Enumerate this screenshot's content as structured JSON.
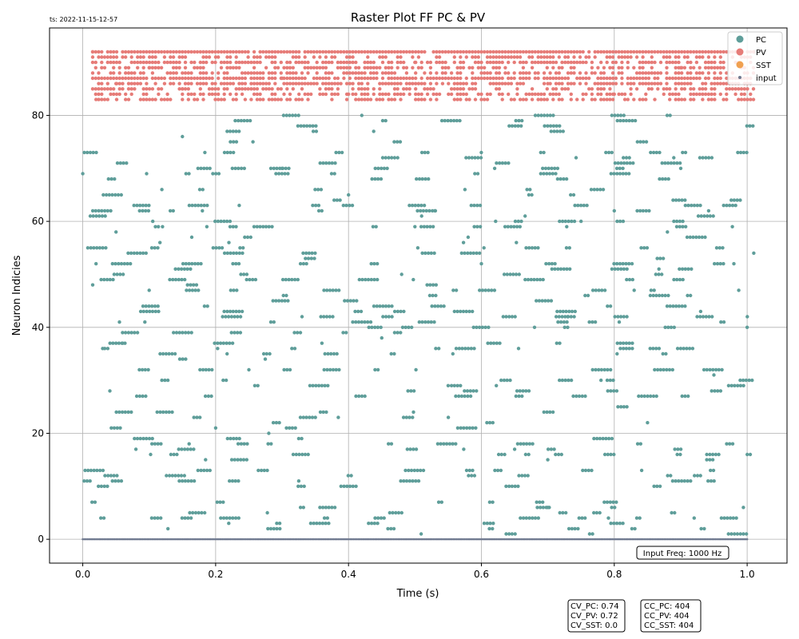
{
  "timestamp": "ts: 2022-11-15-12-57",
  "chart_data": {
    "type": "scatter",
    "title": "Raster Plot FF PC & PV",
    "xlabel": "Time (s)",
    "ylabel": "Neuron Indicies",
    "xlim": [
      -0.05,
      1.06
    ],
    "ylim": [
      -4.5,
      96.5
    ],
    "xticks": [
      0.0,
      0.2,
      0.4,
      0.6,
      0.8,
      1.0
    ],
    "xtick_labels": [
      "0.0",
      "0.2",
      "0.4",
      "0.6",
      "0.8",
      "1.0"
    ],
    "yticks": [
      0,
      20,
      40,
      60,
      80
    ],
    "ytick_labels": [
      "0",
      "20",
      "40",
      "60",
      "80"
    ],
    "grid": true,
    "legend_position": "top-right",
    "series": [
      {
        "name": "PC",
        "color": "#5f9e9a",
        "neuron_range": [
          1,
          80
        ],
        "duration": [
          0.0,
          1.01
        ],
        "sample_spikes": [
          {
            "t": 0.0,
            "y": 69
          },
          {
            "t": 0.015,
            "y": 48
          },
          {
            "t": 0.02,
            "y": 52
          },
          {
            "t": 0.03,
            "y": 36
          },
          {
            "t": 0.05,
            "y": 58
          },
          {
            "t": 0.06,
            "y": 37
          },
          {
            "t": 0.08,
            "y": 17
          },
          {
            "t": 0.1,
            "y": 47
          },
          {
            "t": 0.12,
            "y": 59
          },
          {
            "t": 0.15,
            "y": 76
          },
          {
            "t": 0.18,
            "y": 62
          },
          {
            "t": 0.2,
            "y": 21
          },
          {
            "t": 0.22,
            "y": 56
          },
          {
            "t": 0.25,
            "y": 32
          },
          {
            "t": 0.28,
            "y": 20
          },
          {
            "t": 0.3,
            "y": 70
          },
          {
            "t": 0.33,
            "y": 42
          },
          {
            "t": 0.36,
            "y": 37
          },
          {
            "t": 0.4,
            "y": 65
          },
          {
            "t": 0.42,
            "y": 80
          },
          {
            "t": 0.45,
            "y": 38
          },
          {
            "t": 0.48,
            "y": 50
          },
          {
            "t": 0.5,
            "y": 59
          },
          {
            "t": 0.53,
            "y": 62
          },
          {
            "t": 0.55,
            "y": 29
          },
          {
            "t": 0.58,
            "y": 57
          },
          {
            "t": 0.6,
            "y": 52
          },
          {
            "t": 0.62,
            "y": 70
          },
          {
            "t": 0.65,
            "y": 17
          },
          {
            "t": 0.68,
            "y": 40
          },
          {
            "t": 0.7,
            "y": 6
          },
          {
            "t": 0.73,
            "y": 42
          },
          {
            "t": 0.75,
            "y": 60
          },
          {
            "t": 0.78,
            "y": 30
          },
          {
            "t": 0.8,
            "y": 62
          },
          {
            "t": 0.83,
            "y": 47
          },
          {
            "t": 0.85,
            "y": 22
          },
          {
            "t": 0.88,
            "y": 58
          },
          {
            "t": 0.9,
            "y": 70
          },
          {
            "t": 0.93,
            "y": 43
          },
          {
            "t": 0.95,
            "y": 31
          },
          {
            "t": 0.98,
            "y": 52
          },
          {
            "t": 1.0,
            "y": 40
          },
          {
            "t": 1.01,
            "y": 54
          }
        ]
      },
      {
        "name": "PV",
        "color": "#e67c78",
        "neuron_range": [
          83,
          92
        ],
        "duration": [
          0.01,
          1.01
        ],
        "sample_spikes": [
          {
            "t": 0.015,
            "y": 92
          },
          {
            "t": 0.02,
            "y": 83
          },
          {
            "t": 0.05,
            "y": 86
          },
          {
            "t": 0.1,
            "y": 89
          },
          {
            "t": 0.15,
            "y": 85
          },
          {
            "t": 0.2,
            "y": 91
          },
          {
            "t": 0.3,
            "y": 87
          },
          {
            "t": 0.4,
            "y": 84
          },
          {
            "t": 0.5,
            "y": 90
          },
          {
            "t": 0.6,
            "y": 88
          },
          {
            "t": 0.7,
            "y": 86
          },
          {
            "t": 0.8,
            "y": 84
          },
          {
            "t": 0.9,
            "y": 89
          },
          {
            "t": 1.0,
            "y": 86
          },
          {
            "t": 1.01,
            "y": 92
          }
        ]
      },
      {
        "name": "SST",
        "color": "#f0a050",
        "neuron_range": [],
        "duration": [],
        "sample_spikes": []
      },
      {
        "name": "input",
        "color": "#707a90",
        "neuron_range": [
          0,
          0
        ],
        "duration": [
          0.0,
          1.0
        ],
        "sample_spikes": [
          {
            "t": 0.0,
            "y": 0
          },
          {
            "t": 0.25,
            "y": 0
          },
          {
            "t": 0.5,
            "y": 0
          },
          {
            "t": 0.75,
            "y": 0
          },
          {
            "t": 1.0,
            "y": 0
          }
        ]
      }
    ],
    "annotations": {
      "input_freq": "Input Freq: 1000 Hz",
      "cv_lines": [
        "CV_PC: 0.74",
        "CV_PV: 0.72",
        "CV_SST: 0.0"
      ],
      "cc_lines": [
        "CC_PC: 404",
        "CC_PV: 404",
        "CC_SST: 404"
      ]
    }
  }
}
